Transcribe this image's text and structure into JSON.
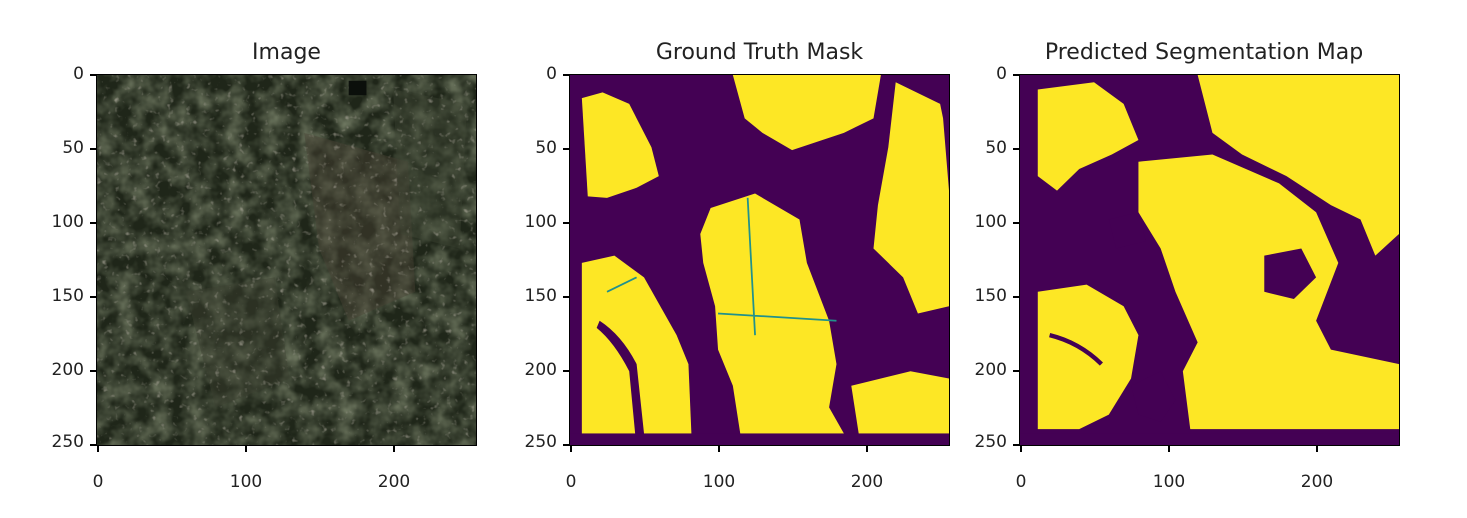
{
  "panels": [
    {
      "title": "Image",
      "kind": "satellite"
    },
    {
      "title": "Ground Truth Mask",
      "kind": "mask"
    },
    {
      "title": "Predicted Segmentation Map",
      "kind": "prediction"
    }
  ],
  "axes": {
    "yticks": [
      "0",
      "50",
      "100",
      "150",
      "200",
      "250"
    ],
    "xticks": [
      "0",
      "100",
      "200"
    ]
  },
  "colors": {
    "background_class": "#440154",
    "foreground_class": "#fde725",
    "boundary": "#21918c"
  }
}
